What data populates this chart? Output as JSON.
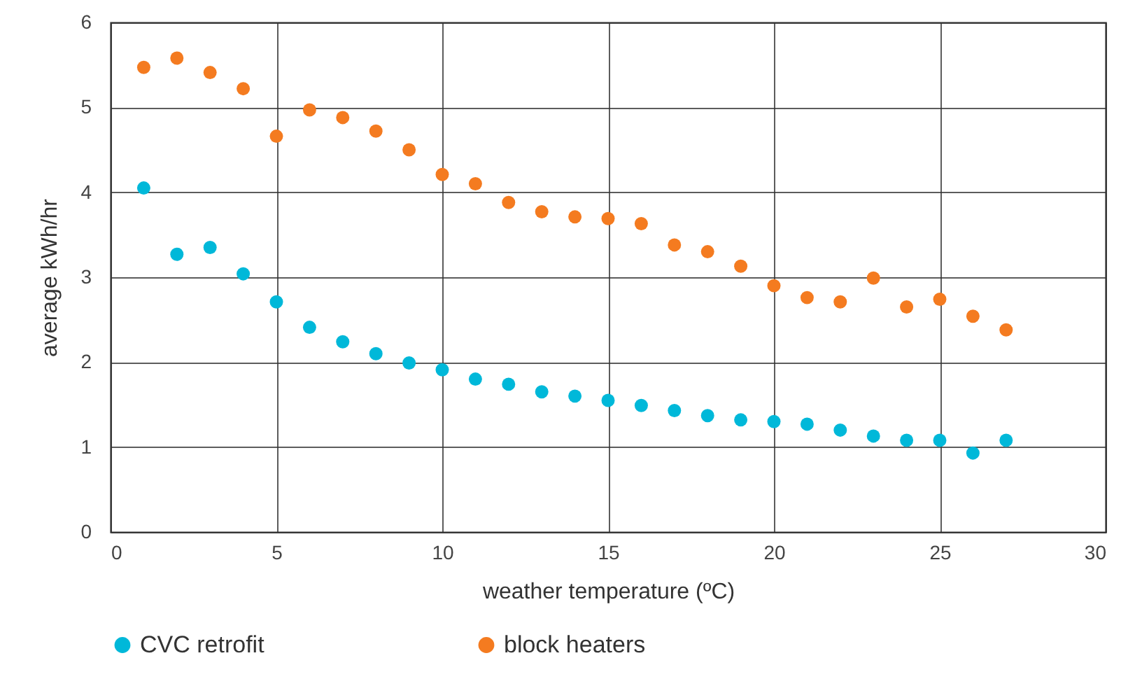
{
  "chart_data": {
    "type": "scatter",
    "xlabel": "weather temperature (ºC)",
    "ylabel": "average kWh/hr",
    "x": [
      1,
      2,
      3,
      4,
      5,
      6,
      7,
      8,
      9,
      10,
      11,
      12,
      13,
      14,
      15,
      16,
      17,
      18,
      19,
      20,
      21,
      22,
      23,
      24,
      25,
      26,
      27
    ],
    "series": [
      {
        "name": "CVC retrofit",
        "color": "#00b8d9",
        "values": [
          4.05,
          3.27,
          3.35,
          3.04,
          2.71,
          2.41,
          2.24,
          2.1,
          1.99,
          1.91,
          1.8,
          1.74,
          1.65,
          1.6,
          1.55,
          1.49,
          1.43,
          1.37,
          1.32,
          1.3,
          1.27,
          1.2,
          1.13,
          1.08,
          1.08,
          0.93,
          1.08
        ]
      },
      {
        "name": "block heaters",
        "color": "#f47b20",
        "values": [
          5.47,
          5.58,
          5.41,
          5.22,
          4.66,
          4.97,
          4.88,
          4.72,
          4.5,
          4.21,
          4.1,
          3.88,
          3.77,
          3.71,
          3.69,
          3.63,
          3.38,
          3.3,
          3.13,
          2.9,
          2.76,
          2.71,
          2.99,
          2.65,
          2.74,
          2.54,
          2.38
        ]
      }
    ],
    "xlim": [
      0,
      30
    ],
    "xticks": [
      0,
      5,
      10,
      15,
      20,
      25,
      30
    ],
    "ylim": [
      0,
      6
    ],
    "yticks": [
      0,
      1,
      2,
      3,
      4,
      5,
      6
    ],
    "grid": true,
    "legend": "bottom",
    "marker": "circle"
  }
}
